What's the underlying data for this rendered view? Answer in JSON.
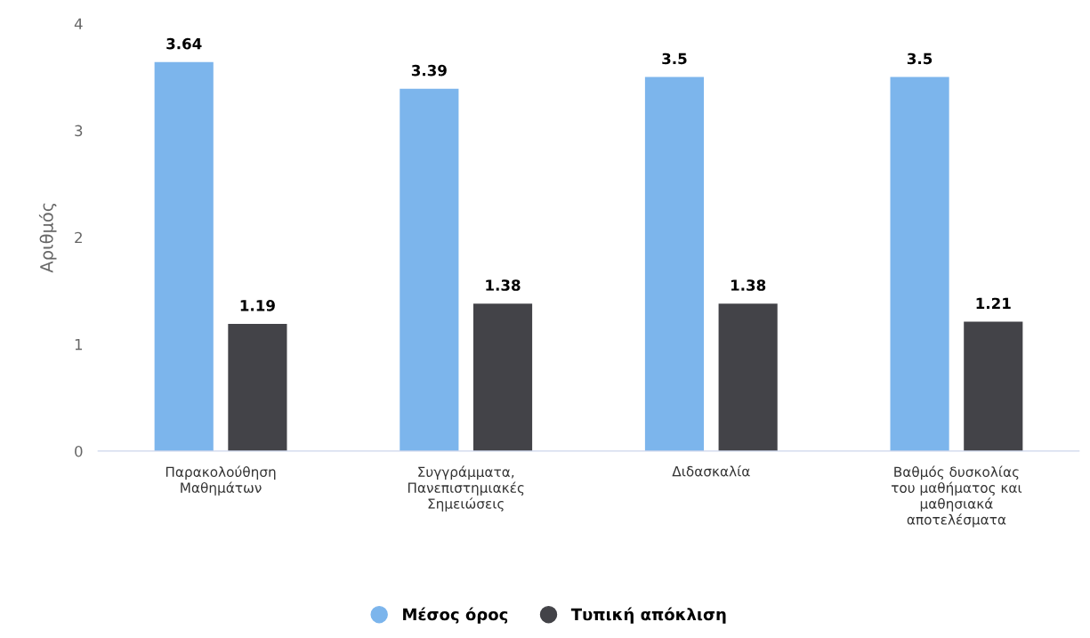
{
  "chart_data": {
    "type": "bar",
    "ylabel": "Αριθμός",
    "categories": [
      "Παρακολούθηση\nΜαθημάτων",
      "Συγγράμματα,\nΠανεπιστημιακές\nΣημειώσεις",
      "Διδασκαλία",
      "Βαθμός δυσκολίας\nτου μαθήματος και\nμαθησιακά\nαποτελέσματα"
    ],
    "series": [
      {
        "name": "Μέσος όρος",
        "color": "#7cb5ec",
        "values": [
          3.64,
          3.39,
          3.5,
          3.5
        ]
      },
      {
        "name": "Τυπική απόκλιση",
        "color": "#434348",
        "values": [
          1.19,
          1.38,
          1.38,
          1.21
        ]
      }
    ],
    "ylim": [
      0,
      4
    ],
    "yticks": [
      0,
      1,
      2,
      3,
      4
    ],
    "data_labels": true,
    "grid": false,
    "legend": "bottom"
  }
}
